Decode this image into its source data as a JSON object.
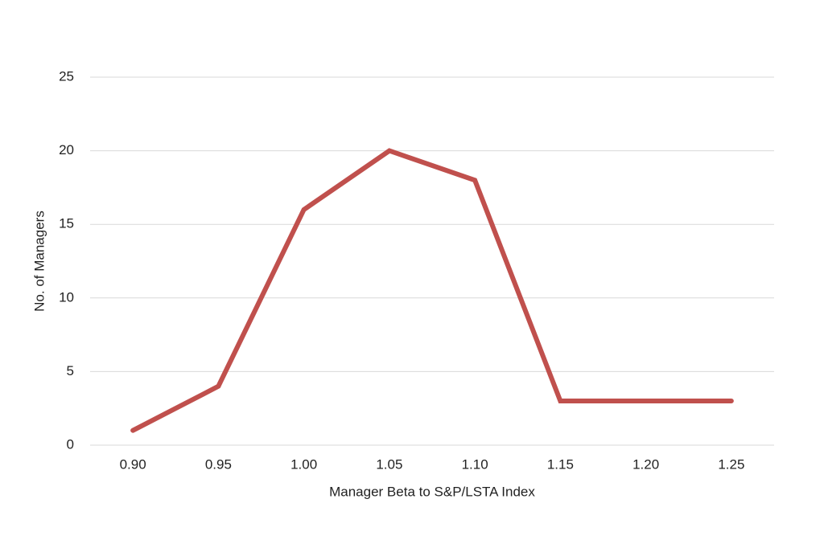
{
  "chart_data": {
    "type": "line",
    "x_label": "Manager Beta to S&P/LSTA Index",
    "y_label": "No. of Managers",
    "categories": [
      "0.90",
      "0.95",
      "1.00",
      "1.05",
      "1.10",
      "1.15",
      "1.20",
      "1.25"
    ],
    "series": [
      {
        "color": "#c0504d",
        "values": [
          1,
          4,
          16,
          20,
          18,
          3,
          3,
          3
        ]
      }
    ],
    "ylim": [
      0,
      25
    ],
    "yticks": [
      0,
      5,
      10,
      15,
      20,
      25
    ],
    "grid": true
  }
}
